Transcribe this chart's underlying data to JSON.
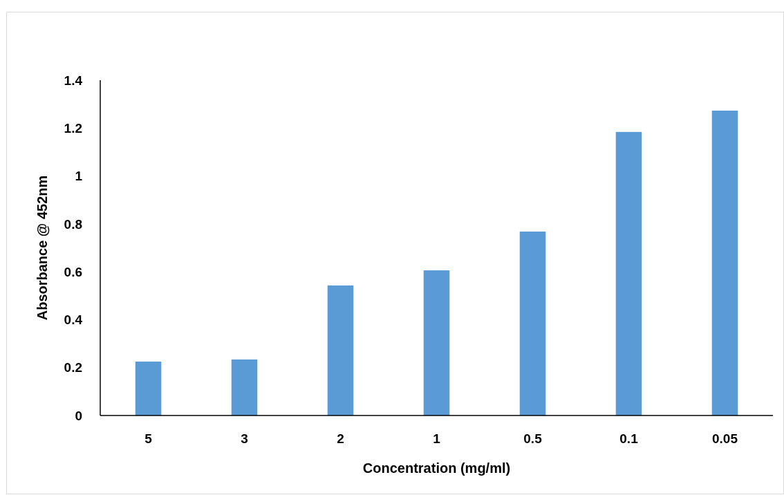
{
  "chart_data": {
    "type": "bar",
    "xlabel": "Concentration (mg/ml)",
    "ylabel": "Absorbance @ 452nm",
    "categories": [
      "5",
      "3",
      "2",
      "1",
      "0.5",
      "0.1",
      "0.05"
    ],
    "values": [
      0.225,
      0.234,
      0.543,
      0.606,
      0.768,
      1.184,
      1.273
    ],
    "color": "#5b9bd5",
    "ylim": [
      0,
      1.4
    ],
    "yticks": [
      0,
      0.2,
      0.4,
      0.6,
      0.8,
      1,
      1.2,
      1.4
    ],
    "grid": false
  }
}
